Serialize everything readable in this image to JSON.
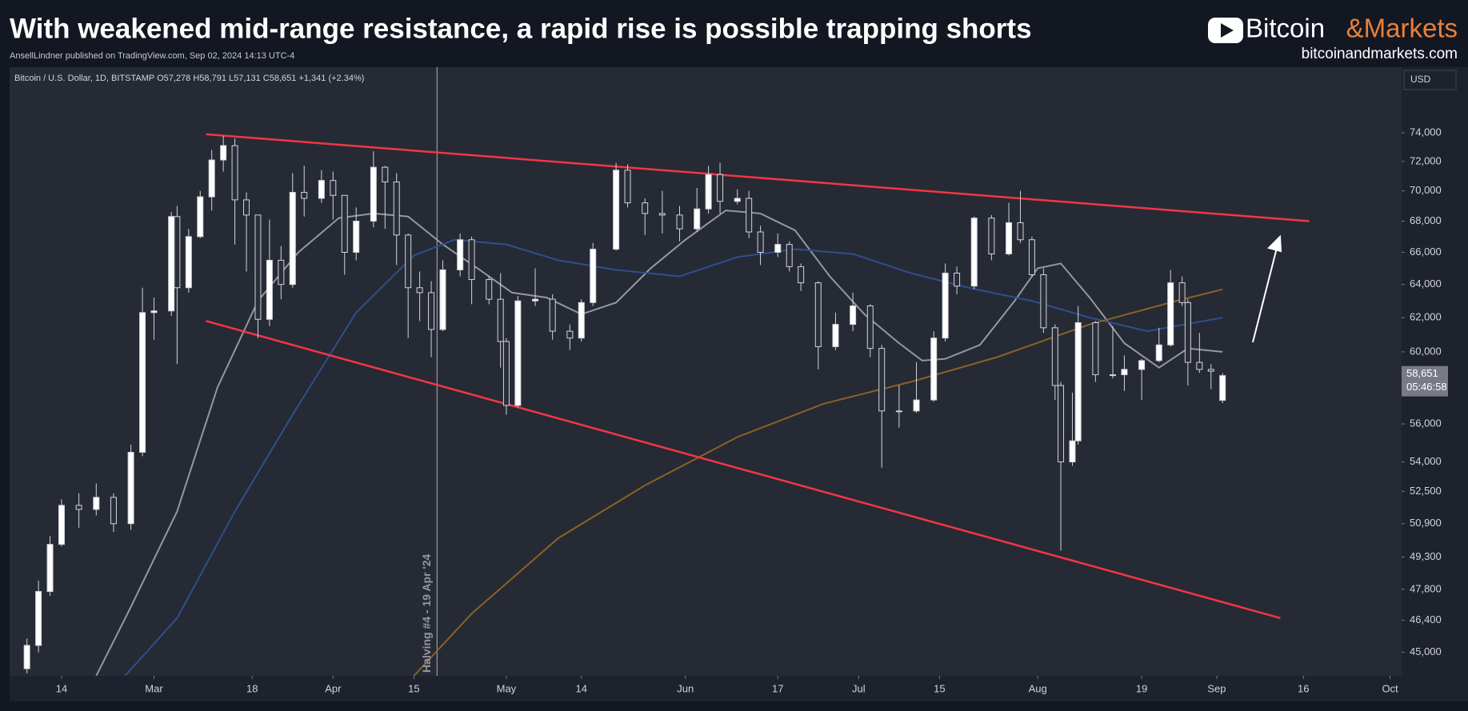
{
  "header": {
    "title": "With weakened mid-range resistance, a rapid rise is possible trapping shorts",
    "subtitle": "AnsellLindner published on TradingView.com, Sep 02, 2024 14:13 UTC-4",
    "brand_part1": "Bitcoin",
    "brand_part2": "&Markets",
    "brand_url": "bitcoinandmarkets.com"
  },
  "chart_data": {
    "type": "candlestick",
    "legend": "Bitcoin / U.S. Dollar, 1D, BITSTAMP  O57,278  H58,791  L57,131  C58,651  +1,341 (+2.34%)",
    "currency_button": "USD",
    "last_price_label": "58,651",
    "countdown_label": "05:46:58",
    "log_scale": true,
    "grid": false,
    "up_color": "#ffffff",
    "down_color": "#2a2e39",
    "wick_color": "#d1d4dc",
    "xlim": [
      "2024-02-05",
      "2024-10-03"
    ],
    "xticks": [
      {
        "value": "2024-02-14",
        "label": "14"
      },
      {
        "value": "2024-03-01",
        "label": "Mar"
      },
      {
        "value": "2024-03-18",
        "label": "18"
      },
      {
        "value": "2024-04-01",
        "label": "Apr"
      },
      {
        "value": "2024-04-15",
        "label": "15"
      },
      {
        "value": "2024-05-01",
        "label": "May"
      },
      {
        "value": "2024-05-14",
        "label": "14"
      },
      {
        "value": "2024-06-01",
        "label": "Jun"
      },
      {
        "value": "2024-06-17",
        "label": "17"
      },
      {
        "value": "2024-07-01",
        "label": "Jul"
      },
      {
        "value": "2024-07-15",
        "label": "15"
      },
      {
        "value": "2024-08-01",
        "label": "Aug"
      },
      {
        "value": "2024-08-19",
        "label": "19"
      },
      {
        "value": "2024-09-01",
        "label": "Sep"
      },
      {
        "value": "2024-09-16",
        "label": "16"
      },
      {
        "value": "2024-10-01",
        "label": "Oct"
      }
    ],
    "ylim": [
      44000,
      78800
    ],
    "yticks": [
      {
        "value": 45000,
        "label": "45,000"
      },
      {
        "value": 46400,
        "label": "46,400"
      },
      {
        "value": 47800,
        "label": "47,800"
      },
      {
        "value": 49300,
        "label": "49,300"
      },
      {
        "value": 50900,
        "label": "50,900"
      },
      {
        "value": 52500,
        "label": "52,500"
      },
      {
        "value": 54000,
        "label": "54,000"
      },
      {
        "value": 56000,
        "label": "56,000"
      },
      {
        "value": 60000,
        "label": "60,000"
      },
      {
        "value": 62000,
        "label": "62,000"
      },
      {
        "value": 64000,
        "label": "64,000"
      },
      {
        "value": 66000,
        "label": "66,000"
      },
      {
        "value": 68000,
        "label": "68,000"
      },
      {
        "value": 70000,
        "label": "70,000"
      },
      {
        "value": 72000,
        "label": "72,000"
      },
      {
        "value": 74000,
        "label": "74,000"
      }
    ],
    "x": [
      "2024-02-08",
      "2024-02-10",
      "2024-02-12",
      "2024-02-14",
      "2024-02-17",
      "2024-02-20",
      "2024-02-23",
      "2024-02-26",
      "2024-02-28",
      "2024-03-01",
      "2024-03-04",
      "2024-03-05",
      "2024-03-07",
      "2024-03-09",
      "2024-03-11",
      "2024-03-13",
      "2024-03-15",
      "2024-03-17",
      "2024-03-19",
      "2024-03-21",
      "2024-03-23",
      "2024-03-25",
      "2024-03-27",
      "2024-03-30",
      "2024-04-01",
      "2024-04-03",
      "2024-04-05",
      "2024-04-08",
      "2024-04-10",
      "2024-04-12",
      "2024-04-14",
      "2024-04-16",
      "2024-04-18",
      "2024-04-20",
      "2024-04-23",
      "2024-04-25",
      "2024-04-28",
      "2024-04-30",
      "2024-05-01",
      "2024-05-03",
      "2024-05-06",
      "2024-05-09",
      "2024-05-12",
      "2024-05-14",
      "2024-05-16",
      "2024-05-20",
      "2024-05-22",
      "2024-05-25",
      "2024-05-28",
      "2024-05-31",
      "2024-06-03",
      "2024-06-05",
      "2024-06-07",
      "2024-06-10",
      "2024-06-12",
      "2024-06-14",
      "2024-06-17",
      "2024-06-19",
      "2024-06-21",
      "2024-06-24",
      "2024-06-27",
      "2024-06-30",
      "2024-07-03",
      "2024-07-05",
      "2024-07-08",
      "2024-07-11",
      "2024-07-14",
      "2024-07-16",
      "2024-07-18",
      "2024-07-21",
      "2024-07-24",
      "2024-07-27",
      "2024-07-29",
      "2024-07-31",
      "2024-08-02",
      "2024-08-04",
      "2024-08-05",
      "2024-08-07",
      "2024-08-08",
      "2024-08-11",
      "2024-08-14",
      "2024-08-16",
      "2024-08-19",
      "2024-08-22",
      "2024-08-24",
      "2024-08-26",
      "2024-08-27",
      "2024-08-29",
      "2024-08-31",
      "2024-09-02"
    ],
    "open": [
      44300,
      45300,
      47700,
      49900,
      51800,
      51600,
      52200,
      50900,
      54500,
      62300,
      62400,
      68300,
      63800,
      67000,
      69600,
      72100,
      73100,
      69400,
      68400,
      61900,
      65500,
      64000,
      69900,
      69500,
      70700,
      69700,
      66000,
      68000,
      71600,
      70600,
      67100,
      63800,
      63500,
      61300,
      64900,
      66800,
      64300,
      63100,
      60600,
      57000,
      63000,
      63100,
      61200,
      60800,
      62900,
      66200,
      71400,
      69200,
      68500,
      68400,
      67500,
      68800,
      71100,
      69300,
      69500,
      67300,
      66000,
      66500,
      65100,
      64100,
      60300,
      61600,
      62700,
      60200,
      56700,
      56700,
      57300,
      60800,
      64700,
      63900,
      68200,
      65900,
      67900,
      66800,
      64600,
      61400,
      58100,
      54000,
      55100,
      61700,
      58700,
      58700,
      59000,
      59500,
      60400,
      64100,
      62900,
      59400,
      59000,
      57278
    ],
    "high": [
      45600,
      48200,
      50300,
      52100,
      52400,
      52900,
      52400,
      54900,
      63800,
      63200,
      68600,
      69000,
      67500,
      70000,
      72800,
      73800,
      73600,
      69900,
      68400,
      68100,
      66400,
      71200,
      71700,
      71400,
      71300,
      69700,
      68900,
      72700,
      71700,
      71200,
      67200,
      64800,
      64200,
      65500,
      67200,
      67000,
      64500,
      64700,
      60800,
      63300,
      65000,
      63400,
      61600,
      63100,
      66600,
      71900,
      71800,
      69500,
      70000,
      69000,
      70200,
      71700,
      71900,
      70100,
      70000,
      67700,
      67200,
      66700,
      65300,
      64200,
      62300,
      63500,
      62800,
      60400,
      58100,
      59400,
      61200,
      65300,
      65100,
      68300,
      68400,
      69200,
      70000,
      67000,
      65000,
      61600,
      58300,
      57700,
      62700,
      61800,
      61500,
      59800,
      59600,
      61400,
      64900,
      64500,
      63100,
      61100,
      59300,
      58791
    ],
    "low": [
      44100,
      45000,
      47500,
      49800,
      50700,
      51300,
      50500,
      50600,
      54300,
      60700,
      62100,
      59300,
      63500,
      66900,
      68700,
      71300,
      66500,
      64800,
      60800,
      61500,
      63100,
      63800,
      68300,
      69200,
      68100,
      64600,
      65500,
      67600,
      67500,
      65200,
      60800,
      61800,
      59700,
      61200,
      64500,
      62800,
      62800,
      59100,
      56500,
      56900,
      62700,
      60700,
      60100,
      60600,
      62700,
      66100,
      68900,
      67100,
      67200,
      66700,
      67300,
      68500,
      68500,
      69100,
      66900,
      65200,
      65700,
      64800,
      63600,
      59000,
      60100,
      61200,
      59700,
      53700,
      55800,
      56600,
      57200,
      60600,
      63400,
      63700,
      65500,
      65800,
      66600,
      64500,
      61100,
      57300,
      49600,
      53800,
      54900,
      58300,
      58500,
      57800,
      57300,
      59400,
      60300,
      62700,
      58100,
      58800,
      57900,
      57131
    ],
    "close": [
      45300,
      47700,
      49900,
      51800,
      51600,
      52200,
      50900,
      54500,
      62300,
      62400,
      68300,
      63800,
      67000,
      69600,
      72100,
      73100,
      69400,
      68400,
      61900,
      65500,
      64000,
      69900,
      69500,
      70700,
      69700,
      66000,
      68000,
      71600,
      70600,
      67100,
      63800,
      63500,
      61300,
      64900,
      66800,
      64300,
      63100,
      60600,
      57000,
      63000,
      63100,
      61200,
      60800,
      62900,
      66200,
      71400,
      69200,
      68500,
      68400,
      67500,
      68800,
      71100,
      69300,
      69500,
      67300,
      66000,
      66500,
      65100,
      64100,
      60300,
      61600,
      62700,
      60200,
      56700,
      56700,
      57300,
      60800,
      64700,
      63900,
      68200,
      65900,
      67900,
      66800,
      64600,
      61400,
      58100,
      54000,
      55100,
      61700,
      58700,
      58700,
      59000,
      59500,
      60400,
      64100,
      62900,
      59400,
      59000,
      58900,
      58651
    ],
    "lines": [
      {
        "color": "#9598a1",
        "x": [
          "2024-02-20",
          "2024-02-26",
          "2024-03-05",
          "2024-03-12",
          "2024-03-19",
          "2024-03-26",
          "2024-04-02",
          "2024-04-08",
          "2024-04-14",
          "2024-04-20",
          "2024-04-26",
          "2024-05-02",
          "2024-05-08",
          "2024-05-14",
          "2024-05-20",
          "2024-05-26",
          "2024-06-01",
          "2024-06-08",
          "2024-06-14",
          "2024-06-20",
          "2024-06-26",
          "2024-07-02",
          "2024-07-08",
          "2024-07-12",
          "2024-07-16",
          "2024-07-22",
          "2024-07-28",
          "2024-08-01",
          "2024-08-05",
          "2024-08-10",
          "2024-08-16",
          "2024-08-22",
          "2024-08-27",
          "2024-09-02"
        ],
        "values": [
          44000,
          47000,
          51500,
          58000,
          63000,
          66000,
          68200,
          68500,
          68300,
          66500,
          65000,
          63500,
          63200,
          62200,
          62900,
          65000,
          66800,
          68700,
          68500,
          67400,
          64500,
          62200,
          60500,
          59500,
          59600,
          60400,
          63000,
          65000,
          65300,
          63200,
          60500,
          59100,
          60200,
          60000
        ]
      },
      {
        "color": "#2e4f8f",
        "x": [
          "2024-02-25",
          "2024-03-05",
          "2024-03-15",
          "2024-03-25",
          "2024-04-05",
          "2024-04-15",
          "2024-04-22",
          "2024-05-01",
          "2024-05-10",
          "2024-05-20",
          "2024-05-31",
          "2024-06-10",
          "2024-06-20",
          "2024-06-30",
          "2024-07-10",
          "2024-07-20",
          "2024-07-31",
          "2024-08-10",
          "2024-08-20",
          "2024-09-02"
        ],
        "values": [
          44000,
          46500,
          51500,
          56500,
          62300,
          65800,
          66800,
          66500,
          65500,
          64900,
          64500,
          65700,
          66200,
          65900,
          64700,
          63800,
          63000,
          62000,
          61200,
          62000
        ]
      },
      {
        "color": "#8a6323",
        "x": [
          "2024-04-15",
          "2024-04-25",
          "2024-05-10",
          "2024-05-25",
          "2024-06-10",
          "2024-06-25",
          "2024-07-10",
          "2024-07-25",
          "2024-08-10",
          "2024-08-25",
          "2024-09-02"
        ],
        "values": [
          44000,
          46700,
          50200,
          52800,
          55300,
          57100,
          58300,
          59700,
          61600,
          63000,
          63700
        ]
      },
      {
        "color": "#f23645",
        "x": [
          "2024-03-10",
          "2024-09-17"
        ],
        "values": [
          73900,
          68000
        ]
      },
      {
        "color": "#f23645",
        "x": [
          "2024-03-10",
          "2024-09-12"
        ],
        "values": [
          61800,
          46500
        ]
      }
    ],
    "vline": {
      "x": "2024-04-19",
      "label": "Halving #4 - 19 Apr '24"
    }
  }
}
